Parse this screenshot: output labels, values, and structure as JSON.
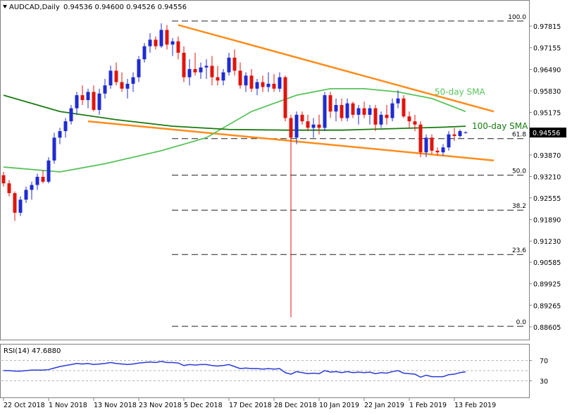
{
  "header": {
    "symbol": "AUDCAD,Daily",
    "ohlc": "0.94536 0.94600 0.94526 0.94556"
  },
  "colors": {
    "bull": "#1f2bd1",
    "bear": "#e0140c",
    "sma50": "#58c35a",
    "sma100": "#1a7a10",
    "trendline": "#ff8c1a",
    "fib_line": "#202020",
    "rsi_line": "#2a3ad8",
    "frame": "#808080",
    "price_tag": "#000000"
  },
  "chart_data": [
    {
      "type": "candlestick",
      "title": "AUDCAD,Daily",
      "x_tick_labels": [
        "22 Oct 2018",
        "1 Nov 2018",
        "13 Nov 2018",
        "23 Nov 2018",
        "5 Dec 2018",
        "17 Dec 2018",
        "28 Dec 2018",
        "10 Jan 2019",
        "22 Jan 2019",
        "1 Feb 2019",
        "13 Feb 2019"
      ],
      "y_tick_labels": [
        "0.97815",
        "0.97155",
        "0.96490",
        "0.95830",
        "0.95175",
        "0.94515",
        "0.93870",
        "0.93210",
        "0.92555",
        "0.91890",
        "0.91230",
        "0.90585",
        "0.89925",
        "0.89265",
        "0.88605"
      ],
      "ylim": [
        0.883,
        0.984
      ],
      "last_price": "0.94556",
      "candles": [
        [
          0.9325,
          0.9335,
          0.929,
          0.93
        ],
        [
          0.93,
          0.931,
          0.926,
          0.927
        ],
        [
          0.927,
          0.9275,
          0.9185,
          0.921
        ],
        [
          0.921,
          0.926,
          0.92,
          0.925
        ],
        [
          0.925,
          0.929,
          0.924,
          0.928
        ],
        [
          0.928,
          0.9305,
          0.925,
          0.9295
        ],
        [
          0.9295,
          0.933,
          0.928,
          0.932
        ],
        [
          0.932,
          0.934,
          0.93,
          0.9305
        ],
        [
          0.9305,
          0.938,
          0.93,
          0.937
        ],
        [
          0.937,
          0.9455,
          0.936,
          0.944
        ],
        [
          0.944,
          0.947,
          0.942,
          0.946
        ],
        [
          0.946,
          0.95,
          0.944,
          0.949
        ],
        [
          0.949,
          0.954,
          0.948,
          0.953
        ],
        [
          0.953,
          0.958,
          0.951,
          0.957
        ],
        [
          0.957,
          0.96,
          0.954,
          0.9555
        ],
        [
          0.9555,
          0.959,
          0.953,
          0.958
        ],
        [
          0.958,
          0.96,
          0.952,
          0.9525
        ],
        [
          0.9525,
          0.959,
          0.951,
          0.9575
        ],
        [
          0.9575,
          0.962,
          0.956,
          0.96
        ],
        [
          0.96,
          0.966,
          0.959,
          0.9645
        ],
        [
          0.9645,
          0.967,
          0.96,
          0.961
        ],
        [
          0.961,
          0.964,
          0.958,
          0.959
        ],
        [
          0.959,
          0.962,
          0.956,
          0.9605
        ],
        [
          0.9605,
          0.964,
          0.958,
          0.9625
        ],
        [
          0.9625,
          0.969,
          0.961,
          0.968
        ],
        [
          0.968,
          0.973,
          0.967,
          0.972
        ],
        [
          0.972,
          0.976,
          0.97,
          0.974
        ],
        [
          0.974,
          0.975,
          0.971,
          0.972
        ],
        [
          0.972,
          0.979,
          0.9715,
          0.977
        ],
        [
          0.977,
          0.9785,
          0.971,
          0.9725
        ],
        [
          0.9725,
          0.9745,
          0.969,
          0.9735
        ],
        [
          0.9735,
          0.975,
          0.968,
          0.97
        ],
        [
          0.97,
          0.972,
          0.961,
          0.9625
        ],
        [
          0.9625,
          0.968,
          0.96,
          0.965
        ],
        [
          0.965,
          0.97,
          0.963,
          0.964
        ],
        [
          0.964,
          0.967,
          0.962,
          0.9655
        ],
        [
          0.9655,
          0.968,
          0.962,
          0.966
        ],
        [
          0.966,
          0.969,
          0.96,
          0.9625
        ],
        [
          0.9625,
          0.966,
          0.96,
          0.9615
        ],
        [
          0.9615,
          0.965,
          0.96,
          0.964
        ],
        [
          0.964,
          0.97,
          0.963,
          0.9685
        ],
        [
          0.9685,
          0.971,
          0.963,
          0.9645
        ],
        [
          0.9645,
          0.967,
          0.959,
          0.96
        ],
        [
          0.96,
          0.964,
          0.958,
          0.963
        ],
        [
          0.963,
          0.965,
          0.958,
          0.959
        ],
        [
          0.959,
          0.962,
          0.957,
          0.961
        ],
        [
          0.961,
          0.963,
          0.958,
          0.9595
        ],
        [
          0.9595,
          0.964,
          0.958,
          0.9605
        ],
        [
          0.9605,
          0.9635,
          0.958,
          0.959
        ],
        [
          0.959,
          0.964,
          0.958,
          0.9625
        ],
        [
          0.9625,
          0.963,
          0.949,
          0.95
        ],
        [
          0.95,
          0.951,
          0.889,
          0.944
        ],
        [
          0.944,
          0.952,
          0.942,
          0.951
        ],
        [
          0.951,
          0.952,
          0.948,
          0.949
        ],
        [
          0.949,
          0.951,
          0.946,
          0.947
        ],
        [
          0.947,
          0.95,
          0.944,
          0.948
        ],
        [
          0.948,
          0.951,
          0.945,
          0.947
        ],
        [
          0.947,
          0.958,
          0.946,
          0.957
        ],
        [
          0.957,
          0.958,
          0.95,
          0.952
        ],
        [
          0.952,
          0.956,
          0.949,
          0.954
        ],
        [
          0.954,
          0.956,
          0.949,
          0.95
        ],
        [
          0.95,
          0.956,
          0.949,
          0.9545
        ],
        [
          0.9545,
          0.955,
          0.95,
          0.951
        ],
        [
          0.951,
          0.954,
          0.948,
          0.953
        ],
        [
          0.953,
          0.955,
          0.95,
          0.951
        ],
        [
          0.951,
          0.954,
          0.948,
          0.953
        ],
        [
          0.953,
          0.954,
          0.946,
          0.948
        ],
        [
          0.948,
          0.952,
          0.947,
          0.951
        ],
        [
          0.951,
          0.954,
          0.948,
          0.95
        ],
        [
          0.95,
          0.956,
          0.949,
          0.9545
        ],
        [
          0.9545,
          0.9585,
          0.953,
          0.956
        ],
        [
          0.956,
          0.957,
          0.95,
          0.9505
        ],
        [
          0.9505,
          0.952,
          0.947,
          0.949
        ],
        [
          0.949,
          0.951,
          0.946,
          0.948
        ],
        [
          0.948,
          0.949,
          0.938,
          0.9395
        ],
        [
          0.9395,
          0.945,
          0.938,
          0.944
        ],
        [
          0.944,
          0.945,
          0.939,
          0.94
        ],
        [
          0.94,
          0.941,
          0.9385,
          0.9395
        ],
        [
          0.9395,
          0.942,
          0.9385,
          0.941
        ],
        [
          0.941,
          0.946,
          0.94,
          0.945
        ],
        [
          0.945,
          0.947,
          0.943,
          0.9445
        ],
        [
          0.9445,
          0.9465,
          0.944,
          0.946
        ],
        [
          0.9454,
          0.946,
          0.9453,
          0.9456
        ]
      ],
      "fib_levels": [
        {
          "label": "100.0",
          "value": 0.9797
        },
        {
          "label": "61.8",
          "value": 0.9437
        },
        {
          "label": "50.0",
          "value": 0.9325
        },
        {
          "label": "38.2",
          "value": 0.9218
        },
        {
          "label": "23.6",
          "value": 0.9082
        },
        {
          "label": "0.0",
          "value": 0.8862
        }
      ],
      "sma50": {
        "label": "50-day SMA",
        "points": [
          [
            0,
            0.935
          ],
          [
            10,
            0.9335
          ],
          [
            18,
            0.936
          ],
          [
            28,
            0.94
          ],
          [
            36,
            0.944
          ],
          [
            44,
            0.952
          ],
          [
            52,
            0.957
          ],
          [
            58,
            0.959
          ],
          [
            64,
            0.959
          ],
          [
            70,
            0.958
          ],
          [
            76,
            0.956
          ],
          [
            82,
            0.952
          ]
        ]
      },
      "sma100": {
        "label": "100-day SMA",
        "points": [
          [
            0,
            0.957
          ],
          [
            10,
            0.952
          ],
          [
            20,
            0.9495
          ],
          [
            30,
            0.9475
          ],
          [
            40,
            0.9465
          ],
          [
            50,
            0.9463
          ],
          [
            60,
            0.9463
          ],
          [
            70,
            0.9468
          ],
          [
            78,
            0.9472
          ],
          [
            82,
            0.9475
          ]
        ]
      },
      "trendlines": [
        {
          "name": "upper",
          "points": [
            [
              31,
              0.9785
            ],
            [
              87,
              0.952
            ]
          ]
        },
        {
          "name": "lower",
          "points": [
            [
              15,
              0.949
            ],
            [
              87,
              0.937
            ]
          ]
        }
      ]
    },
    {
      "type": "line",
      "title": "RSI(14) 47.6880",
      "ylim": [
        0,
        100
      ],
      "y_tick_labels": [
        "70",
        "30"
      ],
      "levels": [
        70,
        50,
        30
      ],
      "values": [
        50,
        50,
        49,
        49,
        50,
        51,
        51,
        51,
        52,
        55,
        58,
        60,
        62,
        64,
        63,
        64,
        62,
        63,
        64,
        66,
        64,
        63,
        62,
        63,
        65,
        66,
        67,
        66,
        68,
        66,
        66,
        65,
        60,
        62,
        61,
        62,
        62,
        60,
        59,
        60,
        62,
        58,
        54,
        55,
        54,
        54,
        53,
        54,
        53,
        54,
        46,
        43,
        48,
        46,
        44,
        45,
        44,
        50,
        47,
        48,
        46,
        48,
        46,
        47,
        46,
        47,
        44,
        46,
        45,
        48,
        50,
        45,
        44,
        43,
        37,
        41,
        38,
        38,
        38,
        42,
        43,
        46,
        47.688
      ]
    }
  ]
}
